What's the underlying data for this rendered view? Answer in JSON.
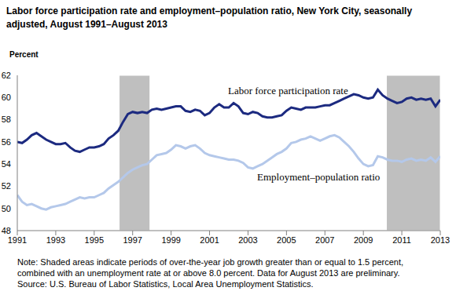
{
  "chart_data": {
    "type": "line",
    "title": "Labor force participation rate and employment–population ratio, New York City, seasonally adjusted, August 1991–August 2013",
    "y_label": "Percent",
    "x": [
      1991,
      1991.25,
      1991.5,
      1991.75,
      1992,
      1992.25,
      1992.5,
      1992.75,
      1993,
      1993.25,
      1993.5,
      1993.75,
      1994,
      1994.25,
      1994.5,
      1994.75,
      1995,
      1995.25,
      1995.5,
      1995.75,
      1996,
      1996.25,
      1996.5,
      1996.75,
      1997,
      1997.25,
      1997.5,
      1997.75,
      1998,
      1998.25,
      1998.5,
      1998.75,
      1999,
      1999.25,
      1999.5,
      1999.75,
      2000,
      2000.25,
      2000.5,
      2000.75,
      2001,
      2001.25,
      2001.5,
      2001.75,
      2002,
      2002.25,
      2002.5,
      2002.75,
      2003,
      2003.25,
      2003.5,
      2003.75,
      2004,
      2004.25,
      2004.5,
      2004.75,
      2005,
      2005.25,
      2005.5,
      2005.75,
      2006,
      2006.25,
      2006.5,
      2006.75,
      2007,
      2007.25,
      2007.5,
      2007.75,
      2008,
      2008.25,
      2008.5,
      2008.75,
      2009,
      2009.25,
      2009.5,
      2009.75,
      2010,
      2010.25,
      2010.5,
      2010.75,
      2011,
      2011.25,
      2011.5,
      2011.75,
      2012,
      2012.25,
      2012.5,
      2012.75,
      2013
    ],
    "xlim": [
      1991,
      2013
    ],
    "xticks": [
      1991,
      1993,
      1995,
      1997,
      1999,
      2001,
      2003,
      2005,
      2007,
      2009,
      2011,
      2013
    ],
    "ylim": [
      48,
      62
    ],
    "yticks": [
      48,
      50,
      52,
      54,
      56,
      58,
      60,
      62
    ],
    "grid": false,
    "series": [
      {
        "name": "Labor force participation rate",
        "color": "#1c2a80",
        "values": [
          56.0,
          55.9,
          56.2,
          56.6,
          56.8,
          56.5,
          56.2,
          56.0,
          55.8,
          55.8,
          55.9,
          55.5,
          55.2,
          55.1,
          55.3,
          55.5,
          55.5,
          55.6,
          55.8,
          56.3,
          56.6,
          57.0,
          57.8,
          58.5,
          58.7,
          58.6,
          58.7,
          58.6,
          58.9,
          59.0,
          58.9,
          59.0,
          59.1,
          59.2,
          59.2,
          58.8,
          58.7,
          58.9,
          58.8,
          58.4,
          58.6,
          59.1,
          59.4,
          59.1,
          59.1,
          59.5,
          59.2,
          58.6,
          58.5,
          58.7,
          58.6,
          58.3,
          58.2,
          58.2,
          58.3,
          58.4,
          58.8,
          59.1,
          59.0,
          58.9,
          59.1,
          59.1,
          59.1,
          59.2,
          59.3,
          59.3,
          59.5,
          59.7,
          59.9,
          60.1,
          60.3,
          60.2,
          60.0,
          59.9,
          60.0,
          60.7,
          60.2,
          59.9,
          59.7,
          59.5,
          59.6,
          59.9,
          60.0,
          59.8,
          59.9,
          59.8,
          59.9,
          59.2,
          59.8
        ]
      },
      {
        "name": "Employment–population ratio",
        "color": "#b4c8ea",
        "values": [
          51.2,
          50.6,
          50.3,
          50.4,
          50.2,
          50.0,
          49.9,
          50.1,
          50.2,
          50.3,
          50.4,
          50.6,
          50.8,
          51.0,
          50.9,
          51.0,
          51.0,
          51.2,
          51.4,
          51.8,
          52.1,
          52.4,
          52.8,
          53.2,
          53.5,
          53.7,
          53.9,
          54.0,
          54.4,
          54.8,
          54.9,
          55.0,
          55.3,
          55.7,
          55.6,
          55.4,
          55.6,
          55.7,
          55.4,
          55.0,
          54.8,
          54.7,
          54.6,
          54.5,
          54.4,
          54.4,
          54.3,
          54.1,
          53.7,
          53.6,
          53.8,
          54.0,
          54.3,
          54.6,
          54.9,
          55.1,
          55.4,
          55.9,
          56.0,
          56.2,
          56.3,
          56.5,
          56.3,
          56.1,
          56.3,
          56.5,
          56.6,
          56.4,
          56.0,
          55.6,
          55.1,
          54.5,
          54.0,
          53.8,
          53.9,
          54.7,
          54.6,
          54.4,
          54.3,
          54.3,
          54.2,
          54.4,
          54.5,
          54.3,
          54.4,
          54.3,
          54.6,
          54.2,
          54.7
        ]
      }
    ],
    "shaded_periods": [
      {
        "start": 1996.3,
        "end": 1997.9
      },
      {
        "start": 2010.2,
        "end": 2013
      }
    ],
    "note": "Note: Shaded areas indicate periods of over-the-year job growth greater than or equal to 1.5 percent, combined with an unemployment rate at or above 8.0 percent. Data for August 2013 are preliminary.",
    "source": "Source: U.S. Bureau of Labor Statistics, Local Area Unemployment Statistics."
  }
}
